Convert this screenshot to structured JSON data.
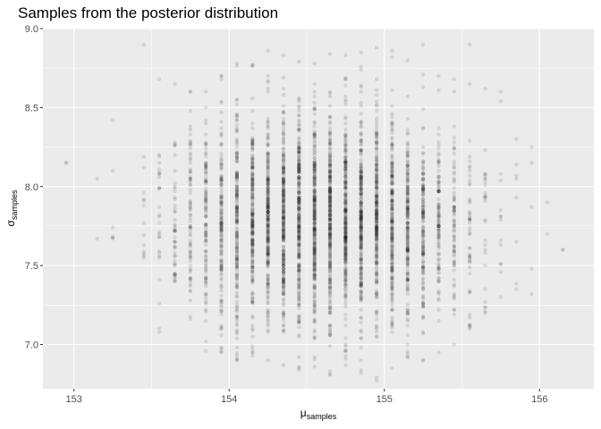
{
  "chart_data": {
    "type": "scatter",
    "title": "Samples from the posterior distribution",
    "xlabel": "μ",
    "xlabel_sub": "samples",
    "ylabel": "σ",
    "ylabel_sub": "samples",
    "xlim": [
      152.8,
      156.35
    ],
    "ylim": [
      6.72,
      9.0
    ],
    "x_ticks": [
      153,
      154,
      155,
      156
    ],
    "x_tick_labels": [
      "153",
      "154",
      "155",
      "156"
    ],
    "y_ticks": [
      7.0,
      7.5,
      8.0,
      8.5,
      9.0
    ],
    "y_tick_labels": [
      "7.0",
      "7.5",
      "8.0",
      "8.5",
      "9.0"
    ],
    "grid": true,
    "legend": "none",
    "panel_color": "#ebebeb",
    "point_color": "#000000",
    "point_alpha": 0.1,
    "series": [
      {
        "x_grid_step": 0.1,
        "x": [
          152.95,
          153.15,
          153.25,
          153.45,
          153.55,
          153.65,
          153.75,
          153.85,
          153.95,
          154.05,
          154.15,
          154.25,
          154.35,
          154.45,
          154.55,
          154.65,
          154.75,
          154.85,
          154.95,
          155.05,
          155.15,
          155.25,
          155.35,
          155.45,
          155.55,
          155.65,
          155.75,
          155.85,
          155.95,
          156.05,
          156.15
        ],
        "y_min": [
          8.15,
          7.67,
          7.67,
          7.55,
          7.08,
          7.4,
          7.16,
          6.96,
          6.95,
          6.9,
          6.93,
          6.9,
          6.87,
          6.84,
          6.86,
          6.81,
          6.87,
          6.82,
          6.77,
          6.85,
          6.92,
          6.9,
          6.95,
          7.0,
          7.1,
          7.2,
          7.3,
          7.35,
          7.32,
          7.7,
          7.6
        ],
        "y_max": [
          8.15,
          8.05,
          8.42,
          8.9,
          8.68,
          8.65,
          8.6,
          8.6,
          8.7,
          8.78,
          8.77,
          8.86,
          8.83,
          8.79,
          8.78,
          8.84,
          8.83,
          8.85,
          8.88,
          8.86,
          8.8,
          8.9,
          8.7,
          8.68,
          8.9,
          8.62,
          8.6,
          8.3,
          8.25,
          7.9,
          7.6
        ],
        "density": [
          1,
          2,
          6,
          14,
          28,
          50,
          80,
          115,
          160,
          200,
          230,
          260,
          280,
          290,
          300,
          300,
          290,
          280,
          260,
          230,
          200,
          160,
          115,
          80,
          50,
          28,
          14,
          8,
          5,
          2,
          1
        ]
      }
    ]
  }
}
